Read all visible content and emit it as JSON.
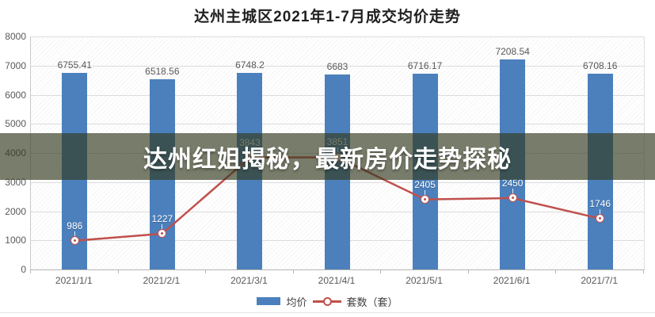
{
  "title": "达州主城区2021年1-7月成交均价走势",
  "overlay": {
    "text": "达州红姐揭秘，最新房价走势探秘"
  },
  "legend": {
    "items": [
      {
        "label": "均价",
        "type": "bar"
      },
      {
        "label": "套数（套）",
        "type": "line"
      }
    ]
  },
  "colors": {
    "bar": "#4b80bd",
    "line": "#c0504d",
    "marker_fill": "#ffffff",
    "value_label_gray": "#595959",
    "point_label_white": "#ffffff",
    "gridline": "#dcdcdc",
    "axis": "#b5b5b5",
    "overlay_bg": "rgba(52,58,30,0.66)",
    "overlay_text": "#ffffff",
    "title_text": "#1f1f1f"
  },
  "chart_data": {
    "type": "bar",
    "subtype": "bar+line combo",
    "title": "达州主城区2021年1-7月成交均价走势",
    "categories": [
      "2021/1/1",
      "2021/2/1",
      "2021/3/1",
      "2021/4/1",
      "2021/5/1",
      "2021/6/1",
      "2021/7/1"
    ],
    "series": [
      {
        "name": "均价",
        "type": "bar",
        "values": [
          6755.41,
          6518.56,
          6748.2,
          6683,
          6716.17,
          7208.54,
          6708.16
        ]
      },
      {
        "name": "套数（套）",
        "type": "line",
        "values": [
          986,
          1227,
          3843,
          3851,
          2405,
          2450,
          1746
        ]
      }
    ],
    "xlabel": "",
    "ylabel": "",
    "ylim": [
      0,
      8000
    ],
    "ytick_step": 1000,
    "grid": true,
    "legend_position": "bottom"
  }
}
